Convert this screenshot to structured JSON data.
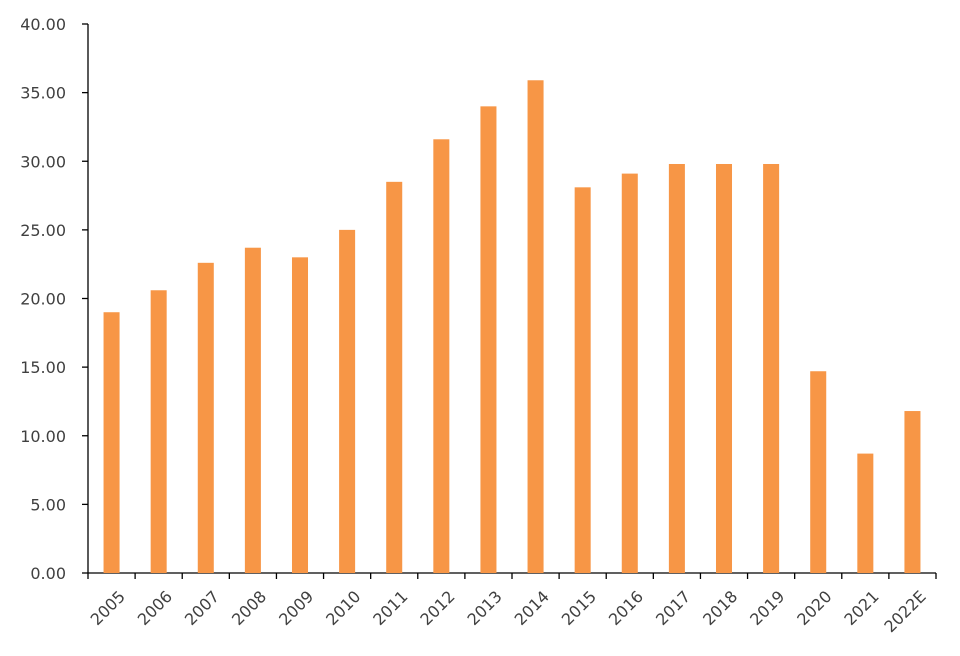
{
  "chart_data": {
    "type": "bar",
    "title": "",
    "xlabel": "",
    "ylabel": "",
    "categories": [
      "2005",
      "2006",
      "2007",
      "2008",
      "2009",
      "2010",
      "2011",
      "2012",
      "2013",
      "2014",
      "2015",
      "2016",
      "2017",
      "2018",
      "2019",
      "2020",
      "2021",
      "2022E"
    ],
    "values": [
      19.0,
      20.6,
      22.6,
      23.7,
      23.0,
      25.0,
      28.5,
      31.6,
      34.0,
      35.9,
      28.1,
      29.1,
      29.8,
      29.8,
      29.8,
      14.7,
      8.7,
      11.8
    ],
    "ylim": [
      0,
      40
    ],
    "yticks": [
      "0.00",
      "5.00",
      "10.00",
      "15.00",
      "20.00",
      "25.00",
      "30.00",
      "35.00",
      "40.00"
    ],
    "grid": false,
    "legend": "none",
    "bar_color": "#F79646"
  }
}
